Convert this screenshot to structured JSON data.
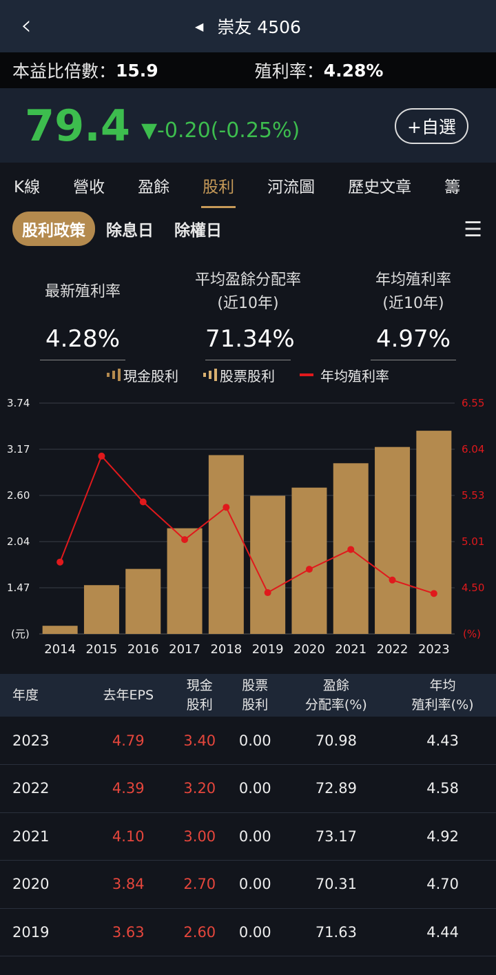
{
  "nav": {
    "title": "崇友 4506"
  },
  "stats": {
    "pe_label": "本益比倍數：",
    "pe": "15.9",
    "yield_label": "殖利率：",
    "yield": "4.28%"
  },
  "quote": {
    "price": "79.4",
    "change": "▼-0.20(-0.25%)",
    "fav": "+自選"
  },
  "tabs": [
    "K線",
    "營收",
    "盈餘",
    "股利",
    "河流圖",
    "歷史文章",
    "籌"
  ],
  "active_tab": "股利",
  "subtabs": [
    "股利政策",
    "除息日",
    "除權日"
  ],
  "kpis": [
    {
      "label": "最新殖利率",
      "label2": "",
      "value": "4.28%"
    },
    {
      "label": "平均盈餘分配率",
      "label2": "(近10年)",
      "value": "71.34%"
    },
    {
      "label": "年均殖利率",
      "label2": "(近10年)",
      "value": "4.97%"
    }
  ],
  "legend": [
    "現金股利",
    "股票股利",
    "年均殖利率"
  ],
  "colors": {
    "bar": "#b48a4e",
    "line": "#e0191c",
    "down": "#3dbd4e"
  },
  "chart_data": {
    "type": "bar",
    "categories": [
      "2014",
      "2015",
      "2016",
      "2017",
      "2018",
      "2019",
      "2020",
      "2021",
      "2022",
      "2023"
    ],
    "series": [
      {
        "name": "現金股利",
        "type": "bar",
        "axis": "left",
        "values": [
          1.0,
          1.5,
          1.7,
          2.2,
          3.1,
          2.6,
          2.7,
          3.0,
          3.2,
          3.4
        ]
      },
      {
        "name": "股票股利",
        "type": "bar",
        "axis": "left",
        "values": [
          0,
          0,
          0,
          0,
          0,
          0,
          0,
          0,
          0,
          0
        ]
      },
      {
        "name": "年均殖利率",
        "type": "line",
        "axis": "right",
        "values": [
          4.78,
          5.96,
          5.45,
          5.03,
          5.39,
          4.44,
          4.7,
          4.92,
          4.58,
          4.43
        ]
      }
    ],
    "left_ticks": [
      "3.74",
      "3.17",
      "2.60",
      "2.04",
      "1.47"
    ],
    "left_unit": "(元)",
    "left_range": [
      0.9,
      3.74
    ],
    "right_ticks": [
      "6.55",
      "6.04",
      "5.53",
      "5.01",
      "4.50"
    ],
    "right_unit": "(%)",
    "right_range": [
      3.98,
      6.55
    ],
    "grid": true,
    "legend_position": "top"
  },
  "table": {
    "headers": [
      [
        "年度",
        ""
      ],
      [
        "去年EPS",
        ""
      ],
      [
        "現金",
        "股利"
      ],
      [
        "股票",
        "股利"
      ],
      [
        "盈餘",
        "分配率(%)"
      ],
      [
        "年均",
        "殖利率(%)"
      ]
    ],
    "rows": [
      [
        "2023",
        "4.79",
        "3.40",
        "0.00",
        "70.98",
        "4.43"
      ],
      [
        "2022",
        "4.39",
        "3.20",
        "0.00",
        "72.89",
        "4.58"
      ],
      [
        "2021",
        "4.10",
        "3.00",
        "0.00",
        "73.17",
        "4.92"
      ],
      [
        "2020",
        "3.84",
        "2.70",
        "0.00",
        "70.31",
        "4.70"
      ],
      [
        "2019",
        "3.63",
        "2.60",
        "0.00",
        "71.63",
        "4.44"
      ]
    ]
  }
}
